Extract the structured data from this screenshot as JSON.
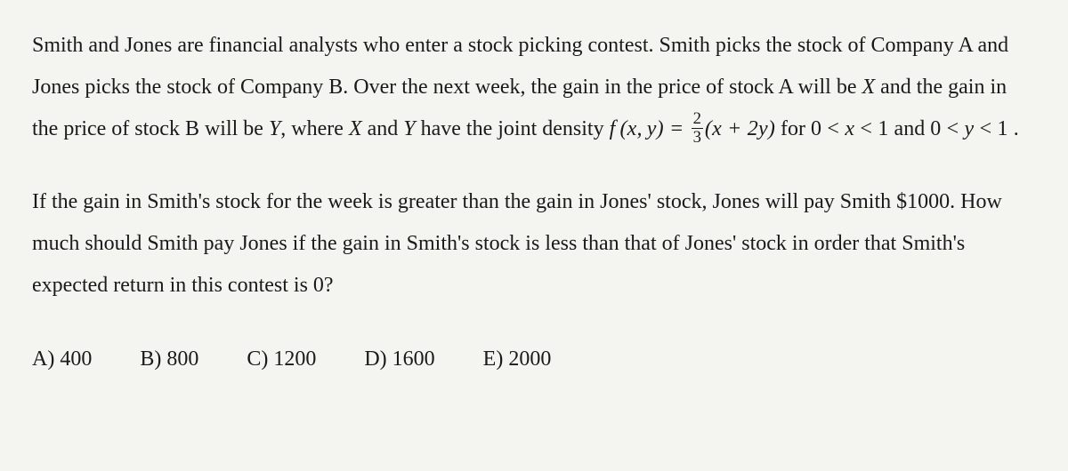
{
  "background_color": "#f4f4f0",
  "text_color": "#1a1a1a",
  "font_family": "Times New Roman, serif",
  "font_size_pt": 18,
  "line_height": 1.95,
  "paragraph_1": {
    "t1": "Smith and Jones are financial analysts who enter a stock picking contest. Smith picks the stock of Company A and Jones picks the stock of Company B. Over the next week, the gain in the price of stock A will be ",
    "varX": "X",
    "t2": " and the gain in the price of stock B will be ",
    "varY": "Y",
    "t3": ", where ",
    "varX2": "X",
    "t4": " and ",
    "varY2": "Y",
    "t5": " have the joint density  ",
    "f_lhs": "f (x, y) = ",
    "frac_num": "2",
    "frac_den": "3",
    "f_rhs": "(x + 2y)",
    "t6": "  for  ",
    "domain1": "0 < x < 1",
    "t7": "  and  ",
    "domain2": "0 < y < 1",
    "t8": " ."
  },
  "paragraph_2": "If the gain in Smith's stock for the week is greater than the gain in Jones' stock, Jones will pay Smith $1000. How much should Smith pay Jones if the gain in Smith's stock is less than that of Jones' stock in order that Smith's expected return in this contest is 0?",
  "choices": [
    {
      "label": "A)",
      "value": "400"
    },
    {
      "label": "B)",
      "value": "800"
    },
    {
      "label": "C)",
      "value": "1200"
    },
    {
      "label": "D)",
      "value": "1600"
    },
    {
      "label": "E)",
      "value": "2000"
    }
  ]
}
